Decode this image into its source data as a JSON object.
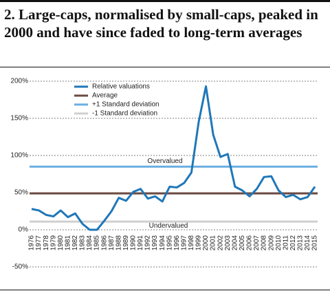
{
  "chart_data": {
    "type": "line",
    "title": "2. Large-caps, normalised by small-caps, peaked in 2000 and have since faded to long-term averages",
    "categories": [
      "1976",
      "1977",
      "1978",
      "1979",
      "1980",
      "1981",
      "1982",
      "1983",
      "1984",
      "1985",
      "1986",
      "1987",
      "1988",
      "1989",
      "1990",
      "1991",
      "1992",
      "1993",
      "1994",
      "1995",
      "1996",
      "1997",
      "1998",
      "1999",
      "2000",
      "2001",
      "2002",
      "2003",
      "2004",
      "2005",
      "2006",
      "2007",
      "2008",
      "2009",
      "2010",
      "2011",
      "2012",
      "2013",
      "2014",
      "2015"
    ],
    "series": [
      {
        "name": "Relative valuations",
        "color": "#1f77b8",
        "values": [
          28,
          26,
          20,
          18,
          26,
          17,
          22,
          8,
          0,
          0,
          12,
          25,
          43,
          39,
          51,
          55,
          42,
          45,
          38,
          58,
          57,
          63,
          77,
          145,
          193,
          128,
          98,
          102,
          58,
          53,
          45,
          55,
          71,
          72,
          53,
          44,
          47,
          41,
          44,
          58
        ]
      }
    ],
    "reference_lines": [
      {
        "name": "Average",
        "color": "#6b4a42",
        "value": 49
      },
      {
        "name": "+1 Standard deviation",
        "color": "#6aaee0",
        "value": 85
      },
      {
        "name": "-1 Standard deviation",
        "color": "#cfcfcf",
        "value": 11
      }
    ],
    "annotations": [
      "Overvalued",
      "Undervalued"
    ],
    "ylim": [
      -50,
      200
    ],
    "yticks": [
      {
        "value": -50,
        "label": "-50%"
      },
      {
        "value": 0,
        "label": "0%"
      },
      {
        "value": 50,
        "label": "50%"
      },
      {
        "value": 100,
        "label": "100%"
      },
      {
        "value": 150,
        "label": "150%"
      },
      {
        "value": 200,
        "label": "200%"
      }
    ],
    "grid": true
  }
}
